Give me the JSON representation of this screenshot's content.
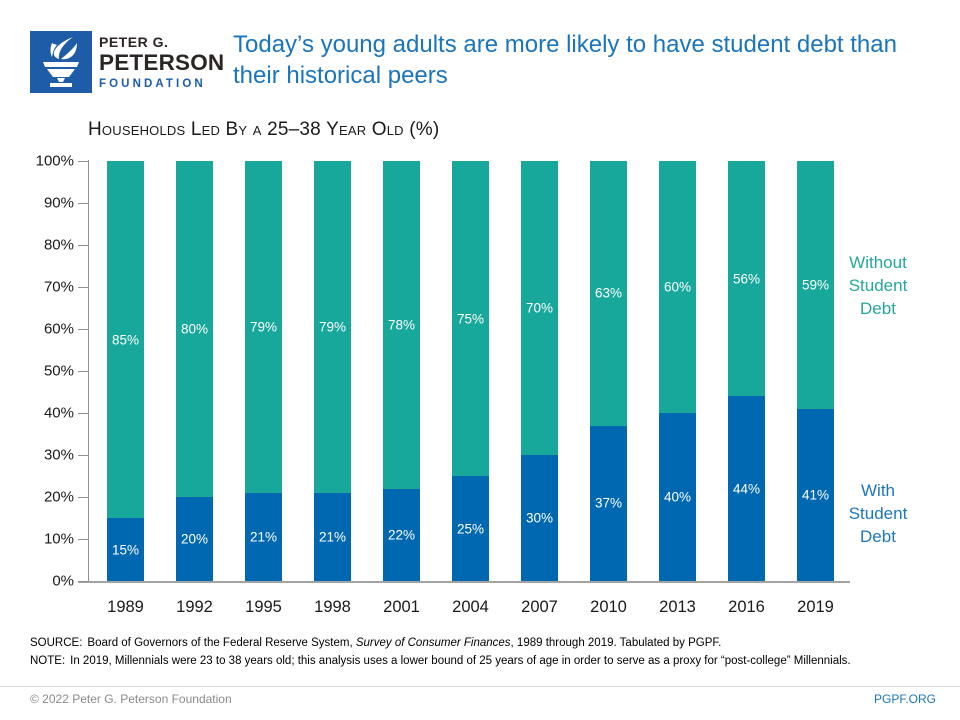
{
  "header": {
    "logo": {
      "line1": "PETER G.",
      "line2": "PETERSON",
      "line3": "FOUNDATION"
    },
    "title_line1": "Today’s young adults are more likely to have student debt than",
    "title_line2": "their historical peers"
  },
  "chart_data": {
    "type": "bar",
    "stacked": true,
    "title": "Households Led By a 25–38 Year Old (%)",
    "categories": [
      "1989",
      "1992",
      "1995",
      "1998",
      "2001",
      "2004",
      "2007",
      "2010",
      "2013",
      "2016",
      "2019"
    ],
    "series": [
      {
        "name": "With Student Debt",
        "color": "#0068B1",
        "values": [
          15,
          20,
          21,
          21,
          22,
          25,
          30,
          37,
          40,
          44,
          41
        ]
      },
      {
        "name": "Without Student Debt",
        "color": "#18A79B",
        "values": [
          85,
          80,
          79,
          79,
          78,
          75,
          70,
          63,
          60,
          56,
          59
        ]
      }
    ],
    "ylim": [
      0,
      100
    ],
    "ytick_step": 10,
    "ytick_labels": [
      "0%",
      "10%",
      "20%",
      "30%",
      "40%",
      "50%",
      "60%",
      "70%",
      "80%",
      "90%",
      "100%"
    ],
    "bar_label_suffix": "%",
    "grid": false,
    "legend_position": "right"
  },
  "footnotes": {
    "source_label": "SOURCE:",
    "source_pre_italic": "Board of Governors of the Federal Reserve System, ",
    "source_italic": "Survey of Consumer Finances",
    "source_post_italic": ", 1989 through 2019. Tabulated by PGPF.",
    "note_label": "NOTE:",
    "note_text": "In 2019, Millennials were 23 to 38 years old; this analysis uses a lower bound of 25 years of age in order to serve as a proxy for “post-college” Millennials."
  },
  "footer": {
    "copyright": "© 2022 Peter  G. Peterson Foundation",
    "site": "PGPF.ORG"
  },
  "colors": {
    "with_debt_blue": "#0068B1",
    "without_debt_teal": "#18A79B",
    "title_blue": "#1B75BC",
    "logo_blue": "#1E5CA8",
    "axis_gray": "#8F8F8F",
    "footer_gray": "#8A8A8A"
  }
}
